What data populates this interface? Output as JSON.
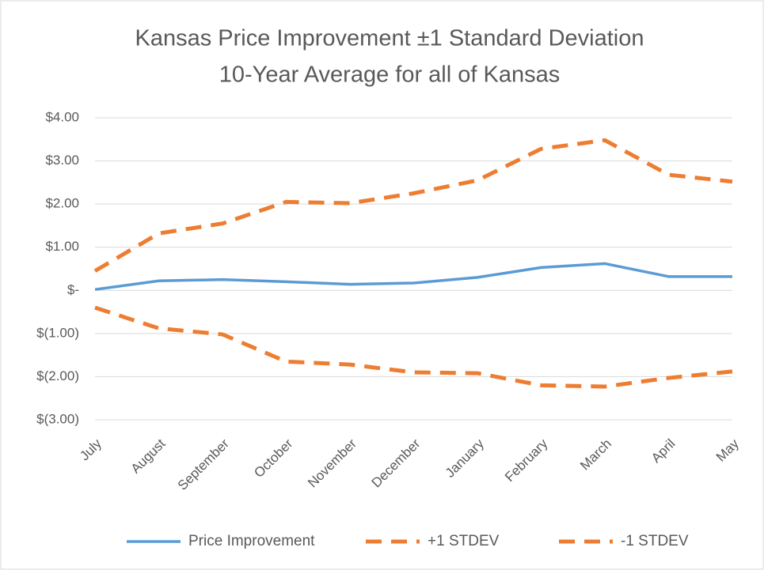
{
  "chart_data": {
    "type": "line",
    "title": "Kansas Price Improvement ±1 Standard Deviation",
    "subtitle": "10-Year Average for all of Kansas",
    "categories": [
      "July",
      "August",
      "September",
      "October",
      "November",
      "December",
      "January",
      "February",
      "March",
      "April",
      "May"
    ],
    "series": [
      {
        "name": "Price Improvement",
        "color": "#5b9bd5",
        "dashed": false,
        "values": [
          0.02,
          0.22,
          0.25,
          0.2,
          0.14,
          0.17,
          0.3,
          0.53,
          0.62,
          0.32,
          0.32
        ]
      },
      {
        "name": "+1 STDEV",
        "color": "#ed7d31",
        "dashed": true,
        "values": [
          0.45,
          1.32,
          1.55,
          2.05,
          2.02,
          2.25,
          2.55,
          3.28,
          3.48,
          2.68,
          2.52
        ]
      },
      {
        "name": "-1 STDEV",
        "color": "#ed7d31",
        "dashed": true,
        "values": [
          -0.4,
          -0.88,
          -1.02,
          -1.65,
          -1.72,
          -1.9,
          -1.92,
          -2.2,
          -2.23,
          -2.03,
          -1.88
        ]
      }
    ],
    "ylim": [
      -3,
      4
    ],
    "yticks": [
      {
        "value": 4,
        "label": "$4.00"
      },
      {
        "value": 3,
        "label": "$3.00"
      },
      {
        "value": 2,
        "label": "$2.00"
      },
      {
        "value": 1,
        "label": "$1.00"
      },
      {
        "value": 0,
        "label": "$-"
      },
      {
        "value": -1,
        "label": "$(1.00)"
      },
      {
        "value": -2,
        "label": "$(2.00)"
      },
      {
        "value": -3,
        "label": "$(3.00)"
      }
    ],
    "grid": true,
    "legend": "bottom"
  }
}
